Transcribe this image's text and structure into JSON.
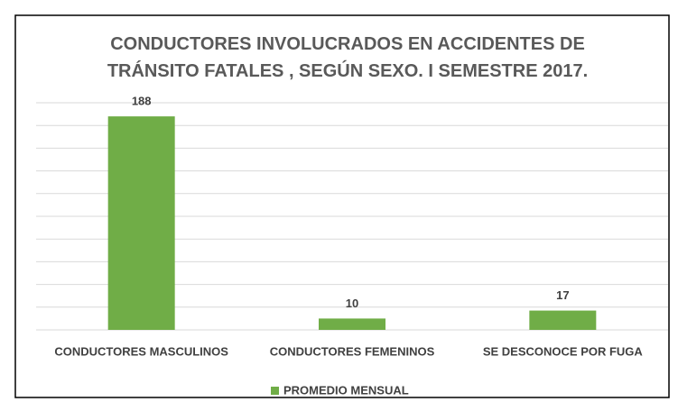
{
  "chart_data": {
    "type": "bar",
    "title": "CONDUCTORES INVOLUCRADOS EN ACCIDENTES DE TRÁNSITO FATALES , SEGÚN SEXO. I SEMESTRE 2017.",
    "categories": [
      "CONDUCTORES MASCULINOS",
      "CONDUCTORES FEMENINOS",
      "SE DESCONOCE POR FUGA"
    ],
    "series": [
      {
        "name": "PROMEDIO MENSUAL",
        "color": "#70ad47",
        "values": [
          188,
          10,
          17
        ]
      }
    ],
    "ylim": [
      0,
      200
    ],
    "yticks": [
      0,
      20,
      40,
      60,
      80,
      100,
      120,
      140,
      160,
      180,
      200
    ],
    "grid": true,
    "legend": "bottom"
  }
}
